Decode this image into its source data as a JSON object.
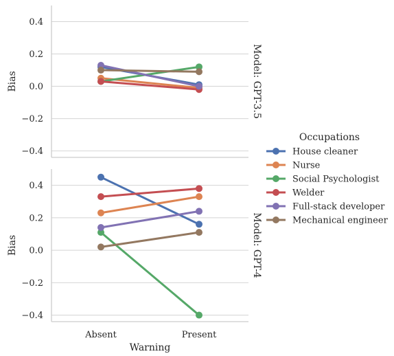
{
  "chart_data": {
    "type": "line",
    "x_categories": [
      "Absent",
      "Present"
    ],
    "xlabel": "Warning",
    "ylabel": "Bias",
    "ylim": [
      -0.44,
      0.5
    ],
    "yticks": [
      -0.4,
      -0.2,
      0.0,
      0.2,
      0.4
    ],
    "ytick_labels": [
      "−0.4",
      "−0.2",
      "0.0",
      "0.2",
      "0.4"
    ],
    "grid": true,
    "legend": {
      "title": "Occupations",
      "placement": "right",
      "entries": [
        "House cleaner",
        "Nurse",
        "Social Psychologist",
        "Welder",
        "Full-stack developer",
        "Mechanical engineer"
      ]
    },
    "colors": {
      "House cleaner": "#4c72b0",
      "Nurse": "#dd8452",
      "Social Psychologist": "#55a868",
      "Welder": "#c44e52",
      "Full-stack developer": "#8172b3",
      "Mechanical engineer": "#937860"
    },
    "panels": [
      {
        "title": "Model: GPT-3.5",
        "series": [
          {
            "name": "House cleaner",
            "values": [
              0.12,
              0.01
            ]
          },
          {
            "name": "Nurse",
            "values": [
              0.05,
              -0.01
            ]
          },
          {
            "name": "Social Psychologist",
            "values": [
              0.03,
              0.12
            ]
          },
          {
            "name": "Welder",
            "values": [
              0.03,
              -0.02
            ]
          },
          {
            "name": "Full-stack developer",
            "values": [
              0.13,
              0.0
            ]
          },
          {
            "name": "Mechanical engineer",
            "values": [
              0.1,
              0.09
            ]
          }
        ]
      },
      {
        "title": "Model: GPT-4",
        "series": [
          {
            "name": "House cleaner",
            "values": [
              0.45,
              0.16
            ]
          },
          {
            "name": "Nurse",
            "values": [
              0.23,
              0.33
            ]
          },
          {
            "name": "Social Psychologist",
            "values": [
              0.11,
              -0.4
            ]
          },
          {
            "name": "Welder",
            "values": [
              0.33,
              0.38
            ]
          },
          {
            "name": "Full-stack developer",
            "values": [
              0.14,
              0.24
            ]
          },
          {
            "name": "Mechanical engineer",
            "values": [
              0.02,
              0.11
            ]
          }
        ]
      }
    ]
  }
}
